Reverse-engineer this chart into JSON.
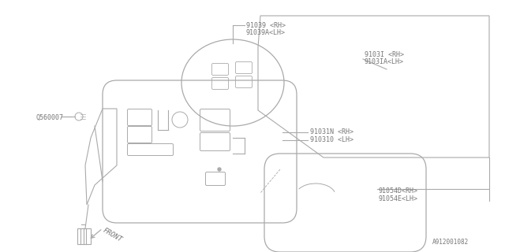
{
  "bg_color": "#ffffff",
  "line_color": "#aaaaaa",
  "text_color": "#777777",
  "fig_width": 6.4,
  "fig_height": 3.2,
  "dpi": 100,
  "labels": {
    "part_91039_rh": "91039 <RH>",
    "part_91039a_lh": "91039A<LH>",
    "part_9103l_rh": "9103I <RH>",
    "part_9103la_lh": "9103IA<LH>",
    "part_91031n_rh": "91031N <RH>",
    "part_91031d_lh": "910310 <LH>",
    "part_91054d_rh": "91054D<RH>",
    "part_91054e_lh": "91054E<LH>",
    "part_q560007": "Q560007",
    "diagram_id": "A912001082",
    "front_label": "FRONT"
  }
}
